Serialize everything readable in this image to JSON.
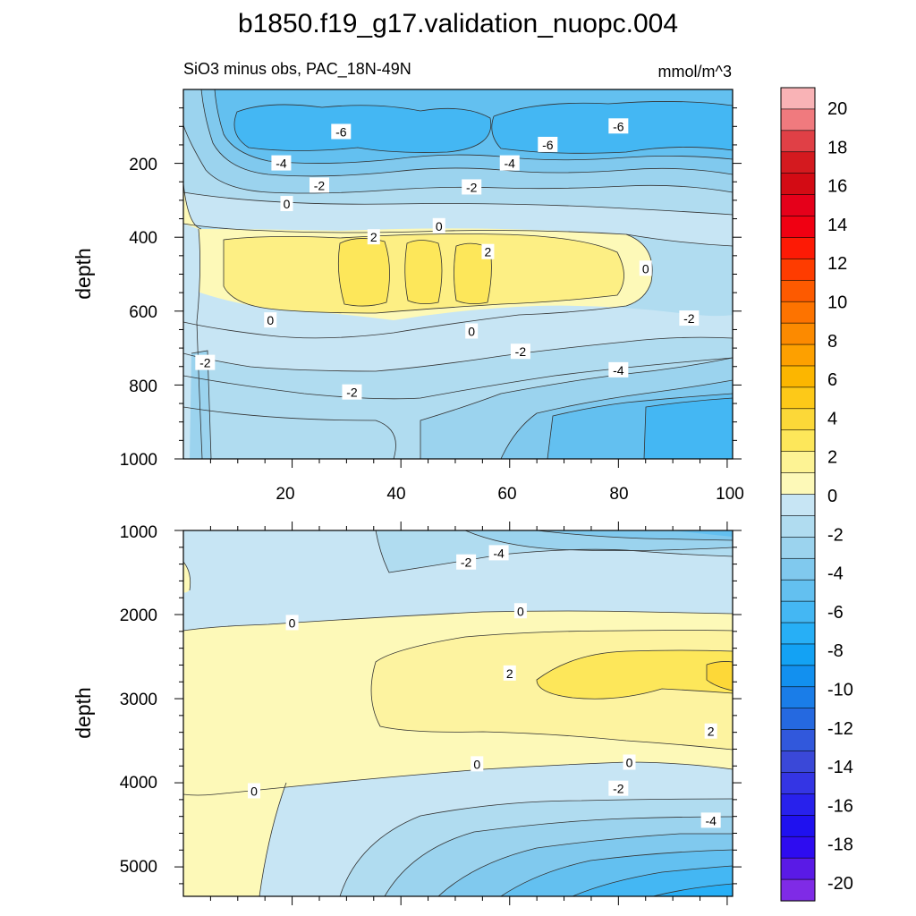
{
  "title": "b1850.f19_g17.validation_nuopc.004",
  "subtitle_left": "SiO3 minus obs, PAC_18N-49N",
  "subtitle_right": "mmol/m^3",
  "chart_data": [
    {
      "type": "contour",
      "panel": "upper",
      "xlabel": "",
      "ylabel": "depth",
      "xlim": [
        0,
        101
      ],
      "ylim": [
        1000,
        0
      ],
      "x_ticks": [
        "20",
        "40",
        "60",
        "80",
        "100"
      ],
      "y_ticks": [
        "200",
        "400",
        "600",
        "800",
        "1000"
      ],
      "contour_labels": [
        {
          "text": "-6",
          "x": 29,
          "y": 115
        },
        {
          "text": "-6",
          "x": 80,
          "y": 100
        },
        {
          "text": "-6",
          "x": 67,
          "y": 150
        },
        {
          "text": "-4",
          "x": 18,
          "y": 200
        },
        {
          "text": "-4",
          "x": 60,
          "y": 200
        },
        {
          "text": "-2",
          "x": 25,
          "y": 260
        },
        {
          "text": "-2",
          "x": 53,
          "y": 265
        },
        {
          "text": "0",
          "x": 19,
          "y": 310
        },
        {
          "text": "0",
          "x": 47,
          "y": 370
        },
        {
          "text": "2",
          "x": 35,
          "y": 400
        },
        {
          "text": "2",
          "x": 56,
          "y": 440
        },
        {
          "text": "0",
          "x": 85,
          "y": 485
        },
        {
          "text": "0",
          "x": 16,
          "y": 625
        },
        {
          "text": "0",
          "x": 53,
          "y": 655
        },
        {
          "text": "-2",
          "x": 93,
          "y": 620
        },
        {
          "text": "-2",
          "x": 62,
          "y": 710
        },
        {
          "text": "-4",
          "x": 80,
          "y": 760
        },
        {
          "text": "-2",
          "x": 4,
          "y": 740
        },
        {
          "text": "-2",
          "x": 31,
          "y": 820
        }
      ]
    },
    {
      "type": "contour",
      "panel": "lower",
      "xlabel": "",
      "ylabel": "depth",
      "xlim": [
        0,
        101
      ],
      "ylim": [
        5350,
        1000
      ],
      "y_ticks": [
        "1000",
        "2000",
        "3000",
        "4000",
        "5000"
      ],
      "contour_labels": [
        {
          "text": "-4",
          "x": 58,
          "y": 1270
        },
        {
          "text": "-2",
          "x": 52,
          "y": 1380
        },
        {
          "text": "0",
          "x": 62,
          "y": 1960
        },
        {
          "text": "0",
          "x": 20,
          "y": 2100
        },
        {
          "text": "2",
          "x": 60,
          "y": 2700
        },
        {
          "text": "2",
          "x": 97,
          "y": 3390
        },
        {
          "text": "0",
          "x": 54,
          "y": 3780
        },
        {
          "text": "0",
          "x": 82,
          "y": 3760
        },
        {
          "text": "0",
          "x": 13,
          "y": 4100
        },
        {
          "text": "-2",
          "x": 80,
          "y": 4070
        },
        {
          "text": "-4",
          "x": 97,
          "y": 4450
        }
      ]
    }
  ],
  "colorbar": {
    "labels": [
      "20",
      "18",
      "16",
      "14",
      "12",
      "10",
      "8",
      "6",
      "4",
      "2",
      "0",
      "-2",
      "-4",
      "-6",
      "-8",
      "-10",
      "-12",
      "-14",
      "-16",
      "-18",
      "-20"
    ],
    "colors": [
      "#f9b3b6",
      "#f07a7e",
      "#e04046",
      "#d41a1f",
      "#d30b14",
      "#e5001a",
      "#f00012",
      "#fd1a05",
      "#fe3c00",
      "#fd5a00",
      "#fd7300",
      "#fc8a00",
      "#fda000",
      "#fcb600",
      "#fdc918",
      "#fcd838",
      "#fde75a",
      "#fdf394",
      "#fdf9b8",
      "#c7e5f4",
      "#b0dcf0",
      "#9bd3ee",
      "#80c9ee",
      "#63c0f0",
      "#44b7f3",
      "#27aff6",
      "#13a2f4",
      "#1290ef",
      "#1a7de8",
      "#2569e0",
      "#3158dc",
      "#3a48d8",
      "#3435e4",
      "#2821ec",
      "#1f11ef",
      "#2e0cf0",
      "#5a1ae6",
      "#7f2be6"
    ]
  }
}
